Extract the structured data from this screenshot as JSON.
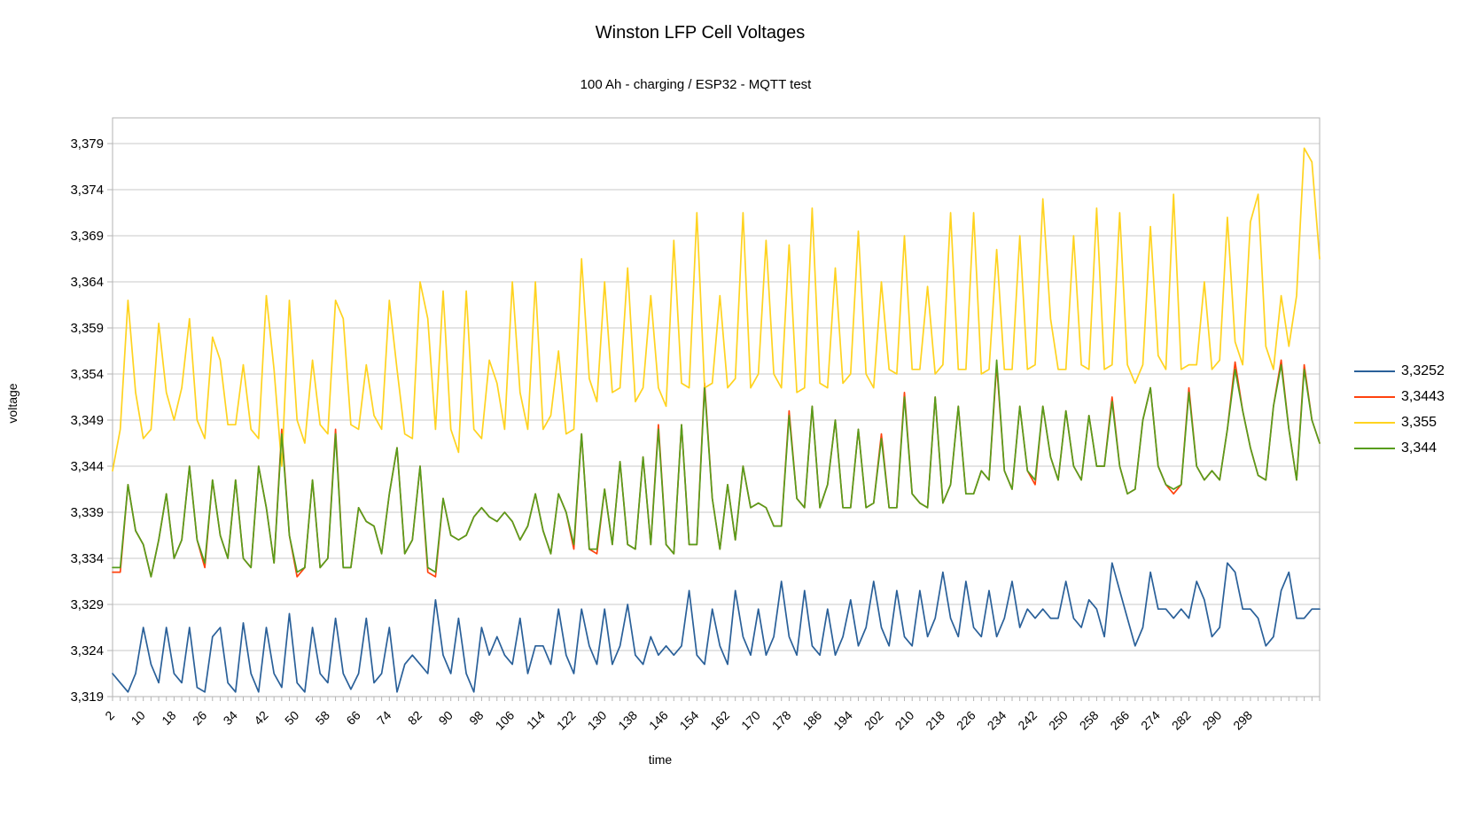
{
  "page": {
    "title": "Winston LFP Cell Voltages",
    "subtitle": "100 Ah - charging / ESP32 - MQTT test"
  },
  "colors": {
    "background": "#ffffff",
    "gridline": "#c9c9c9",
    "axis_line": "#b3b3b3",
    "text": "#000000"
  },
  "chart_data": {
    "type": "line",
    "title": "Winston LFP Cell Voltages",
    "subtitle": "100 Ah - charging / ESP32 - MQTT test",
    "xlabel": "time",
    "ylabel": "voltage",
    "grid": "horizontal",
    "legend_position": "right",
    "ylim": [
      3.319,
      3.382
    ],
    "y_tick_values": [
      3.379,
      3.374,
      3.369,
      3.364,
      3.359,
      3.354,
      3.349,
      3.344,
      3.339,
      3.334,
      3.329,
      3.324,
      3.319
    ],
    "y_tick_labels": [
      "3,379",
      "3,374",
      "3,369",
      "3,364",
      "3,359",
      "3,354",
      "3,349",
      "3,344",
      "3,339",
      "3,334",
      "3,329",
      "3,324",
      "3,319"
    ],
    "x_tick_labels": [
      "2",
      "10",
      "18",
      "26",
      "34",
      "42",
      "50",
      "58",
      "66",
      "74",
      "82",
      "90",
      "98",
      "106",
      "114",
      "122",
      "130",
      "138",
      "146",
      "154",
      "162",
      "170",
      "178",
      "186",
      "194",
      "202",
      "210",
      "218",
      "226",
      "234",
      "242",
      "250",
      "258",
      "266",
      "274",
      "282",
      "290",
      "298"
    ],
    "x_label_every": 4,
    "x": [
      2,
      4,
      6,
      8,
      10,
      12,
      14,
      16,
      18,
      20,
      22,
      24,
      26,
      28,
      30,
      32,
      34,
      36,
      38,
      40,
      42,
      44,
      46,
      48,
      50,
      52,
      54,
      56,
      58,
      60,
      62,
      64,
      66,
      68,
      70,
      72,
      74,
      76,
      78,
      80,
      82,
      84,
      86,
      88,
      90,
      92,
      94,
      96,
      98,
      100,
      102,
      104,
      106,
      108,
      110,
      112,
      114,
      116,
      118,
      120,
      122,
      124,
      126,
      128,
      130,
      132,
      134,
      136,
      138,
      140,
      142,
      144,
      146,
      148,
      150,
      152,
      154,
      156,
      158,
      160,
      162,
      164,
      166,
      168,
      170,
      172,
      174,
      176,
      178,
      180,
      182,
      184,
      186,
      188,
      190,
      192,
      194,
      196,
      198,
      200,
      202,
      204,
      206,
      208,
      210,
      212,
      214,
      216,
      218,
      220,
      222,
      224,
      226,
      228,
      230,
      232,
      234,
      236,
      238,
      240,
      242,
      244,
      246,
      248,
      250,
      252,
      254,
      256,
      258,
      260,
      262,
      264,
      266,
      268,
      270,
      272,
      274,
      276,
      278,
      280,
      282,
      284,
      286,
      288,
      290,
      292,
      294,
      296,
      298,
      300,
      302,
      304,
      306,
      308,
      310,
      312,
      314,
      316
    ],
    "series": [
      {
        "name": "3,3252",
        "color": "#2a6099",
        "values": [
          3.3215,
          3.3205,
          3.3195,
          3.3215,
          3.3265,
          3.3225,
          3.3205,
          3.3265,
          3.3215,
          3.3205,
          3.3265,
          3.32,
          3.3195,
          3.3255,
          3.3265,
          3.3205,
          3.3195,
          3.327,
          3.3215,
          3.3195,
          3.3265,
          3.3215,
          3.32,
          3.328,
          3.3205,
          3.3195,
          3.3265,
          3.3215,
          3.3205,
          3.3275,
          3.3215,
          3.3198,
          3.3215,
          3.3275,
          3.3205,
          3.3215,
          3.3265,
          3.3195,
          3.3225,
          3.3235,
          3.3225,
          3.3215,
          3.3295,
          3.3235,
          3.3215,
          3.3275,
          3.3215,
          3.3195,
          3.3265,
          3.3235,
          3.3255,
          3.3235,
          3.3225,
          3.3275,
          3.3215,
          3.3245,
          3.3245,
          3.3225,
          3.3285,
          3.3235,
          3.3215,
          3.3285,
          3.3245,
          3.3225,
          3.3285,
          3.3225,
          3.3245,
          3.329,
          3.3235,
          3.3225,
          3.3255,
          3.3235,
          3.3245,
          3.3235,
          3.3245,
          3.3305,
          3.3235,
          3.3225,
          3.3285,
          3.3245,
          3.3225,
          3.3305,
          3.3255,
          3.3235,
          3.3285,
          3.3235,
          3.3255,
          3.3315,
          3.3255,
          3.3235,
          3.3305,
          3.3245,
          3.3235,
          3.3285,
          3.3235,
          3.3255,
          3.3295,
          3.3245,
          3.3265,
          3.3315,
          3.3265,
          3.3245,
          3.3305,
          3.3255,
          3.3245,
          3.3305,
          3.3255,
          3.3275,
          3.3325,
          3.3275,
          3.3255,
          3.3315,
          3.3265,
          3.3255,
          3.3305,
          3.3255,
          3.3275,
          3.3315,
          3.3265,
          3.3285,
          3.3275,
          3.3285,
          3.3275,
          3.3275,
          3.3315,
          3.3275,
          3.3265,
          3.3295,
          3.3285,
          3.3255,
          3.3335,
          3.3305,
          3.3275,
          3.3245,
          3.3265,
          3.3325,
          3.3285,
          3.3285,
          3.3275,
          3.3285,
          3.3275,
          3.3315,
          3.3295,
          3.3255,
          3.3265,
          3.3335,
          3.3325,
          3.3285,
          3.3285,
          3.3275,
          3.3245,
          3.3255,
          3.3305,
          3.3325,
          3.3275,
          3.3275,
          3.3285,
          3.3285
        ]
      },
      {
        "name": "3,3443",
        "color": "#ff420e",
        "values": [
          3.3325,
          3.3325,
          3.342,
          3.337,
          3.3355,
          3.332,
          3.336,
          3.341,
          3.334,
          3.336,
          3.344,
          3.336,
          3.333,
          3.3425,
          3.3365,
          3.334,
          3.3425,
          3.334,
          3.333,
          3.344,
          3.3395,
          3.3335,
          3.348,
          3.3365,
          3.332,
          3.333,
          3.3425,
          3.333,
          3.334,
          3.348,
          3.333,
          3.333,
          3.3395,
          3.338,
          3.3375,
          3.3345,
          3.341,
          3.346,
          3.3345,
          3.336,
          3.344,
          3.3325,
          3.332,
          3.3405,
          3.3365,
          3.336,
          3.3365,
          3.3385,
          3.3395,
          3.3385,
          3.338,
          3.339,
          3.338,
          3.336,
          3.3375,
          3.341,
          3.337,
          3.3345,
          3.341,
          3.339,
          3.335,
          3.3475,
          3.335,
          3.3345,
          3.3415,
          3.3355,
          3.3445,
          3.3355,
          3.335,
          3.345,
          3.3355,
          3.3485,
          3.3355,
          3.3345,
          3.3485,
          3.3355,
          3.3355,
          3.353,
          3.3405,
          3.335,
          3.342,
          3.336,
          3.344,
          3.3395,
          3.34,
          3.3395,
          3.3375,
          3.3375,
          3.35,
          3.3405,
          3.3395,
          3.3505,
          3.3395,
          3.342,
          3.349,
          3.3395,
          3.3395,
          3.348,
          3.3395,
          3.34,
          3.3475,
          3.3395,
          3.3395,
          3.352,
          3.341,
          3.34,
          3.3395,
          3.3515,
          3.34,
          3.342,
          3.3505,
          3.341,
          3.341,
          3.3435,
          3.3425,
          3.355,
          3.3435,
          3.3415,
          3.3505,
          3.3435,
          3.342,
          3.3505,
          3.345,
          3.3425,
          3.35,
          3.344,
          3.3425,
          3.3495,
          3.344,
          3.344,
          3.3515,
          3.344,
          3.341,
          3.3415,
          3.349,
          3.3525,
          3.344,
          3.342,
          3.341,
          3.342,
          3.3525,
          3.344,
          3.3425,
          3.3435,
          3.3425,
          3.348,
          3.3553,
          3.35,
          3.346,
          3.343,
          3.3425,
          3.3505,
          3.3555,
          3.348,
          3.3425,
          3.355,
          3.349,
          3.3465
        ]
      },
      {
        "name": "3,355",
        "color": "#ffd320",
        "values": [
          3.3435,
          3.348,
          3.362,
          3.352,
          3.347,
          3.348,
          3.3595,
          3.352,
          3.349,
          3.3525,
          3.36,
          3.349,
          3.347,
          3.358,
          3.3555,
          3.3485,
          3.3485,
          3.355,
          3.348,
          3.347,
          3.3625,
          3.3545,
          3.344,
          3.362,
          3.349,
          3.3465,
          3.3555,
          3.3485,
          3.3475,
          3.362,
          3.36,
          3.3485,
          3.348,
          3.355,
          3.3495,
          3.348,
          3.362,
          3.3545,
          3.3475,
          3.347,
          3.364,
          3.36,
          3.348,
          3.363,
          3.348,
          3.3455,
          3.363,
          3.348,
          3.347,
          3.3555,
          3.353,
          3.348,
          3.364,
          3.352,
          3.348,
          3.364,
          3.348,
          3.3495,
          3.3565,
          3.3475,
          3.348,
          3.3665,
          3.3535,
          3.351,
          3.364,
          3.352,
          3.3525,
          3.3655,
          3.351,
          3.3525,
          3.3625,
          3.3525,
          3.3505,
          3.3685,
          3.353,
          3.3525,
          3.3715,
          3.3525,
          3.353,
          3.3625,
          3.3525,
          3.3535,
          3.3715,
          3.3525,
          3.354,
          3.3685,
          3.354,
          3.3525,
          3.368,
          3.352,
          3.3525,
          3.372,
          3.353,
          3.3525,
          3.3655,
          3.353,
          3.354,
          3.3695,
          3.354,
          3.3525,
          3.364,
          3.3545,
          3.354,
          3.369,
          3.3545,
          3.3545,
          3.3635,
          3.354,
          3.355,
          3.3715,
          3.3545,
          3.3545,
          3.3715,
          3.354,
          3.3545,
          3.3675,
          3.3545,
          3.3545,
          3.369,
          3.3545,
          3.355,
          3.373,
          3.36,
          3.3545,
          3.3545,
          3.369,
          3.355,
          3.3545,
          3.372,
          3.3545,
          3.355,
          3.3715,
          3.355,
          3.353,
          3.355,
          3.37,
          3.356,
          3.3545,
          3.3735,
          3.3545,
          3.355,
          3.355,
          3.364,
          3.3545,
          3.3555,
          3.371,
          3.3575,
          3.355,
          3.3705,
          3.3735,
          3.357,
          3.3545,
          3.3625,
          3.357,
          3.3625,
          3.3785,
          3.377,
          3.3665
        ]
      },
      {
        "name": "3,344",
        "color": "#579d1c",
        "values": [
          3.333,
          3.333,
          3.342,
          3.337,
          3.3355,
          3.332,
          3.336,
          3.341,
          3.334,
          3.336,
          3.344,
          3.336,
          3.3335,
          3.3425,
          3.3365,
          3.334,
          3.3425,
          3.334,
          3.333,
          3.344,
          3.3395,
          3.3335,
          3.3475,
          3.3365,
          3.3325,
          3.333,
          3.3425,
          3.333,
          3.334,
          3.3475,
          3.333,
          3.333,
          3.3395,
          3.338,
          3.3375,
          3.3345,
          3.341,
          3.346,
          3.3345,
          3.336,
          3.344,
          3.333,
          3.3325,
          3.3405,
          3.3365,
          3.336,
          3.3365,
          3.3385,
          3.3395,
          3.3385,
          3.338,
          3.339,
          3.338,
          3.336,
          3.3375,
          3.341,
          3.337,
          3.3345,
          3.341,
          3.339,
          3.3355,
          3.3475,
          3.335,
          3.335,
          3.3415,
          3.3355,
          3.3445,
          3.3355,
          3.335,
          3.345,
          3.3355,
          3.348,
          3.3355,
          3.3345,
          3.3485,
          3.3355,
          3.3355,
          3.3525,
          3.3405,
          3.335,
          3.342,
          3.336,
          3.344,
          3.3395,
          3.34,
          3.3395,
          3.3375,
          3.3375,
          3.3495,
          3.3405,
          3.3395,
          3.3505,
          3.3395,
          3.342,
          3.349,
          3.3395,
          3.3395,
          3.348,
          3.3395,
          3.34,
          3.347,
          3.3395,
          3.3395,
          3.3515,
          3.341,
          3.34,
          3.3395,
          3.3515,
          3.34,
          3.342,
          3.3505,
          3.341,
          3.341,
          3.3435,
          3.3425,
          3.3555,
          3.3435,
          3.3415,
          3.3505,
          3.3435,
          3.3425,
          3.3505,
          3.345,
          3.3425,
          3.35,
          3.344,
          3.3425,
          3.3495,
          3.344,
          3.344,
          3.351,
          3.344,
          3.341,
          3.3415,
          3.349,
          3.3525,
          3.344,
          3.342,
          3.3415,
          3.342,
          3.352,
          3.344,
          3.3425,
          3.3435,
          3.3425,
          3.348,
          3.3545,
          3.35,
          3.346,
          3.343,
          3.3425,
          3.3505,
          3.355,
          3.348,
          3.3425,
          3.3545,
          3.349,
          3.3465
        ]
      }
    ]
  }
}
